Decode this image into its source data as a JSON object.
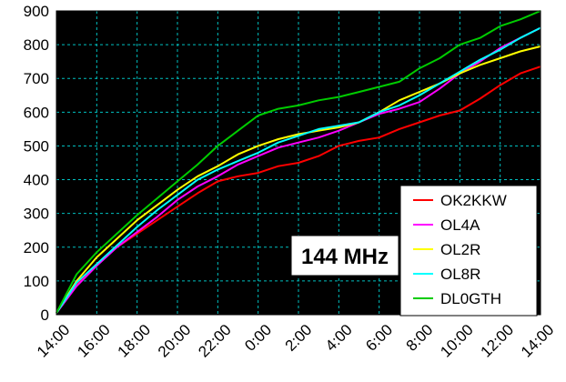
{
  "chart_data": {
    "type": "line",
    "annotation": "144 MHz",
    "x_ticks": [
      "14:00",
      "16:00",
      "18:00",
      "20:00",
      "22:00",
      "0:00",
      "2:00",
      "4:00",
      "6:00",
      "8:00",
      "10:00",
      "12:00",
      "14:00"
    ],
    "ylim": [
      0,
      900
    ],
    "y_ticks": [
      "0",
      "100",
      "200",
      "300",
      "400",
      "500",
      "600",
      "700",
      "800",
      "900"
    ],
    "grid": true,
    "legend_position": "bottom-right",
    "colors": {
      "plot_background": "#000000",
      "grid": "#00c0c0"
    },
    "x_hours": [
      0,
      1,
      2,
      3,
      4,
      5,
      6,
      7,
      8,
      9,
      10,
      11,
      12,
      13,
      14,
      15,
      16,
      17,
      18,
      19,
      20,
      21,
      22,
      23,
      24
    ],
    "series": [
      {
        "name": "OK2KKW",
        "color": "#ff0000",
        "values": [
          5,
          90,
          150,
          200,
          240,
          280,
          320,
          360,
          395,
          410,
          420,
          440,
          450,
          470,
          500,
          515,
          525,
          550,
          570,
          590,
          605,
          640,
          680,
          715,
          735
        ]
      },
      {
        "name": "OL4A",
        "color": "#ff00ff",
        "values": [
          5,
          85,
          145,
          200,
          245,
          290,
          340,
          380,
          410,
          445,
          470,
          495,
          510,
          525,
          545,
          570,
          595,
          610,
          630,
          670,
          715,
          750,
          790,
          820,
          850
        ]
      },
      {
        "name": "OL2R",
        "color": "#ffff00",
        "values": [
          5,
          100,
          170,
          225,
          280,
          325,
          370,
          410,
          440,
          475,
          500,
          520,
          535,
          545,
          555,
          570,
          600,
          635,
          660,
          685,
          715,
          740,
          760,
          780,
          795
        ]
      },
      {
        "name": "OL8R",
        "color": "#00ffff",
        "values": [
          5,
          95,
          150,
          205,
          260,
          310,
          355,
          400,
          430,
          455,
          480,
          510,
          530,
          550,
          560,
          570,
          600,
          620,
          650,
          685,
          720,
          755,
          785,
          820,
          850
        ]
      },
      {
        "name": "DL0GTH",
        "color": "#00cc00",
        "values": [
          5,
          120,
          185,
          240,
          295,
          345,
          395,
          445,
          500,
          545,
          590,
          610,
          620,
          635,
          645,
          660,
          675,
          690,
          730,
          760,
          800,
          820,
          855,
          875,
          900
        ]
      }
    ]
  }
}
